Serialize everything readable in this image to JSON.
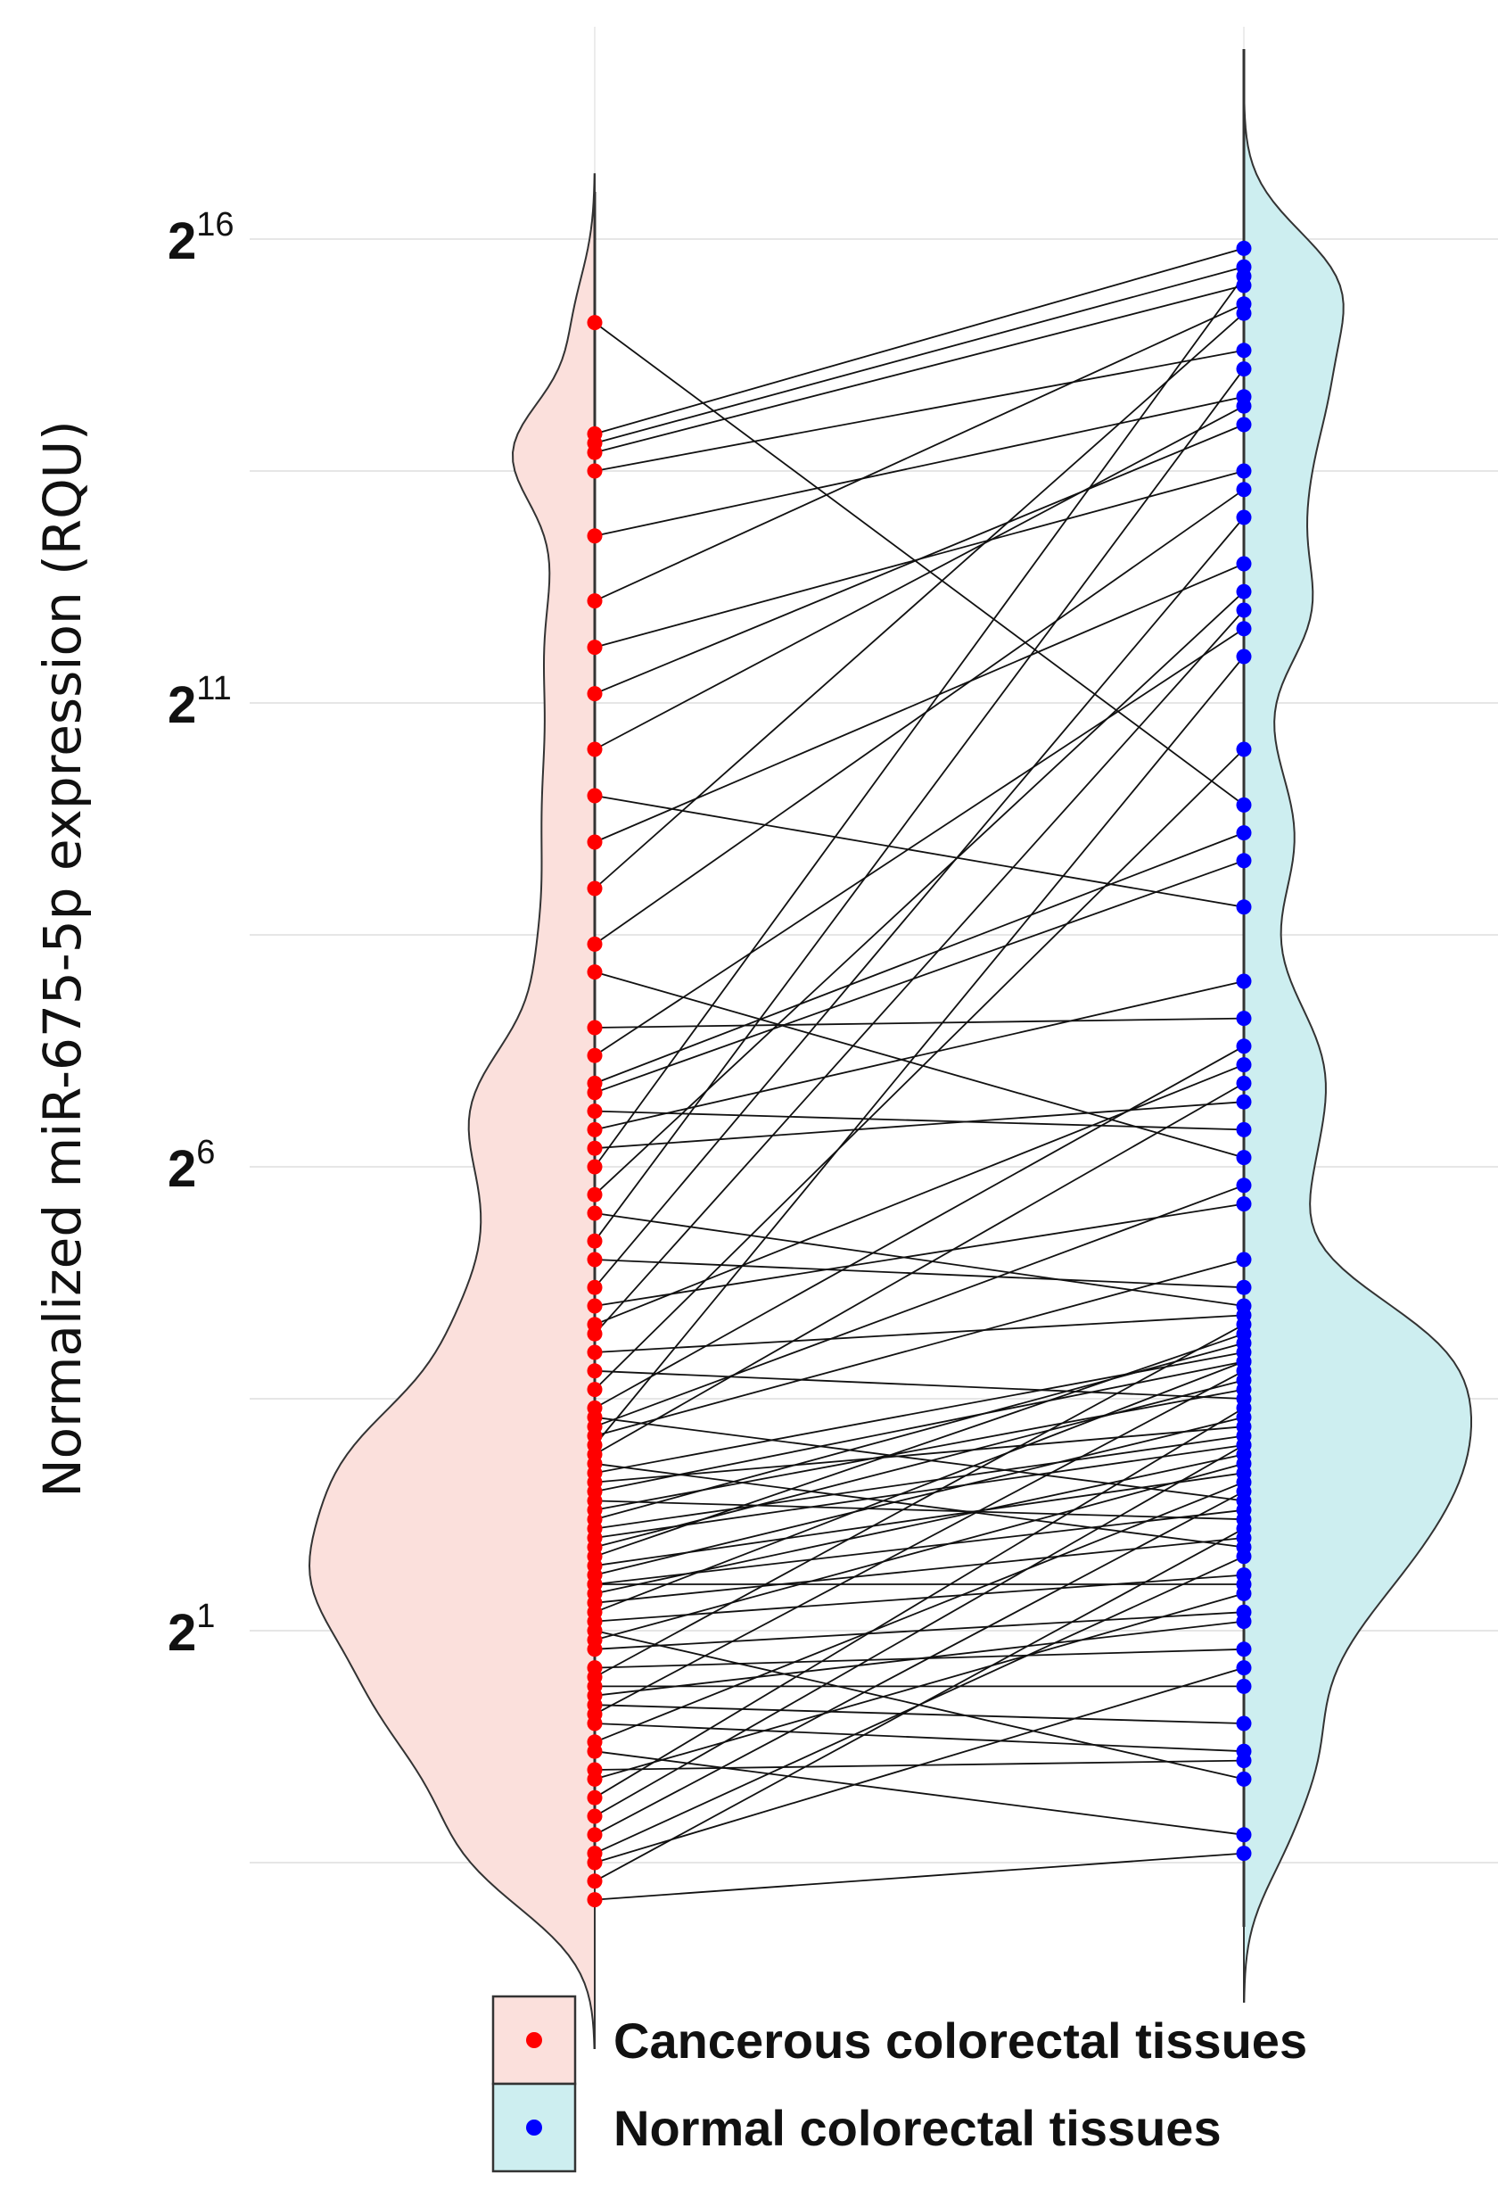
{
  "chart_data": {
    "type": "violin-paired-scatter",
    "ylabel": "Normalized miR-675-5p expression (RQU)",
    "y_scale": "log2",
    "ylim_exponent": [
      -4,
      19
    ],
    "y_ticks": [
      {
        "base": "2",
        "exp": "1",
        "value": 1
      },
      {
        "base": "2",
        "exp": "6",
        "value": 6
      },
      {
        "base": "2",
        "exp": "11",
        "value": 11
      },
      {
        "base": "2",
        "exp": "16",
        "value": 16
      }
    ],
    "grid": true,
    "legend_position": "bottom-right",
    "series": [
      {
        "name": "Cancerous colorectal tissues",
        "color": "#ff0000",
        "fill": "#fbe0dc",
        "side": "left"
      },
      {
        "name": "Normal colorectal tissues",
        "color": "#0000ff",
        "fill": "#cdeef0",
        "side": "right"
      }
    ],
    "pairs_log2": [
      [
        15.1,
        9.9
      ],
      [
        13.9,
        15.9
      ],
      [
        13.8,
        15.7
      ],
      [
        13.7,
        15.5
      ],
      [
        13.5,
        14.8
      ],
      [
        12.8,
        14.3
      ],
      [
        12.1,
        15.3
      ],
      [
        11.6,
        13.5
      ],
      [
        11.1,
        14.0
      ],
      [
        10.0,
        8.8
      ],
      [
        9.0,
        15.2
      ],
      [
        8.4,
        13.3
      ],
      [
        7.2,
        11.8
      ],
      [
        6.8,
        9.3
      ],
      [
        6.6,
        6.4
      ],
      [
        6.4,
        8.0
      ],
      [
        6.0,
        15.6
      ],
      [
        5.7,
        12.2
      ],
      [
        5.2,
        14.6
      ],
      [
        4.7,
        13.0
      ],
      [
        4.2,
        12.0
      ],
      [
        3.6,
        10.5
      ],
      [
        3.4,
        7.3
      ],
      [
        3.2,
        5.8
      ],
      [
        3.0,
        11.5
      ],
      [
        2.9,
        6.9
      ],
      [
        2.7,
        4.0
      ],
      [
        2.5,
        3.9
      ],
      [
        2.3,
        3.6
      ],
      [
        2.1,
        3.1
      ],
      [
        1.9,
        3.7
      ],
      [
        1.7,
        2.7
      ],
      [
        1.6,
        3.3
      ],
      [
        1.5,
        2.3
      ],
      [
        1.3,
        2.0
      ],
      [
        1.1,
        1.6
      ],
      [
        1.0,
        -0.6
      ],
      [
        0.8,
        1.2
      ],
      [
        0.6,
        0.8
      ],
      [
        0.4,
        0.4
      ],
      [
        0.2,
        0.0
      ],
      [
        0.0,
        -0.3
      ],
      [
        -0.3,
        -1.2
      ],
      [
        -0.5,
        -0.4
      ],
      [
        -0.8,
        3.4
      ],
      [
        -1.0,
        3.0
      ],
      [
        -1.2,
        2.5
      ],
      [
        -1.4,
        1.8
      ],
      [
        -1.7,
        2.1
      ],
      [
        -1.9,
        -1.4
      ],
      [
        1.2,
        3.9
      ],
      [
        1.4,
        2.9
      ],
      [
        1.8,
        4.2
      ],
      [
        2.2,
        4.1
      ],
      [
        2.6,
        3.2
      ],
      [
        3.3,
        2.4
      ],
      [
        3.8,
        3.5
      ],
      [
        4.0,
        4.4
      ],
      [
        4.5,
        5.6
      ],
      [
        5.0,
        4.7
      ],
      [
        5.5,
        4.5
      ],
      [
        6.2,
        6.7
      ],
      [
        7.5,
        7.6
      ],
      [
        8.1,
        6.1
      ],
      [
        9.5,
        12.5
      ],
      [
        10.5,
        14.2
      ],
      [
        0.5,
        4.3
      ],
      [
        0.1,
        3.8
      ],
      [
        -0.2,
        2.6
      ],
      [
        -0.6,
        1.4
      ],
      [
        2.0,
        3.0
      ],
      [
        2.4,
        2.2
      ],
      [
        1.5,
        1.5
      ],
      [
        0.9,
        2.8
      ],
      [
        -1.5,
        0.6
      ],
      [
        3.1,
        5.0
      ],
      [
        4.3,
        7.1
      ],
      [
        6.9,
        9.6
      ],
      [
        2.8,
        1.9
      ],
      [
        0.3,
        1.1
      ]
    ]
  },
  "legend": {
    "items": [
      {
        "label": "Cancerous colorectal tissues",
        "dot_color": "#ff0000",
        "box_color": "#fbe0dc"
      },
      {
        "label": "Normal colorectal tissues",
        "dot_color": "#0000ff",
        "box_color": "#cdeef0"
      }
    ]
  }
}
